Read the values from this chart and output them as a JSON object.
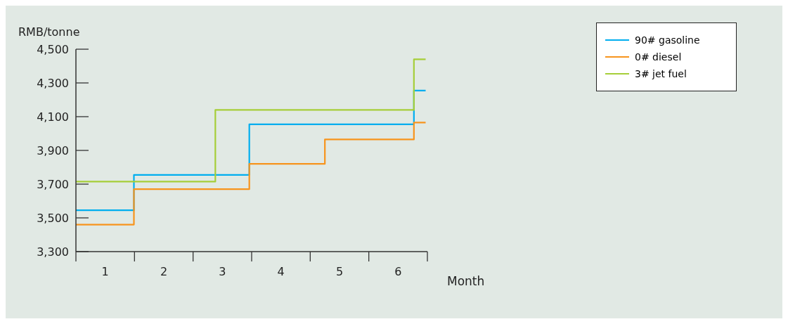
{
  "chart_data": {
    "type": "step",
    "ylabel": "RMB/tonne",
    "xlabel": "Month",
    "xlim": [
      0,
      6
    ],
    "xticks": [
      {
        "value": 0,
        "label": null
      },
      {
        "value": 0.5,
        "label": "1"
      },
      {
        "value": 1,
        "label": null
      },
      {
        "value": 1.5,
        "label": "2"
      },
      {
        "value": 2,
        "label": null
      },
      {
        "value": 2.5,
        "label": "3"
      },
      {
        "value": 3,
        "label": null
      },
      {
        "value": 3.5,
        "label": "4"
      },
      {
        "value": 4,
        "label": null
      },
      {
        "value": 4.5,
        "label": "5"
      },
      {
        "value": 5,
        "label": null
      },
      {
        "value": 5.5,
        "label": "6"
      },
      {
        "value": 6,
        "label": null
      }
    ],
    "ylim": [
      3300,
      4500
    ],
    "yticks": [
      {
        "value": 3300,
        "label": "3,300"
      },
      {
        "value": 3500,
        "label": "3,500"
      },
      {
        "value": 3700,
        "label": "3,700"
      },
      {
        "value": 3900,
        "label": "3,900"
      },
      {
        "value": 4100,
        "label": "4,100"
      },
      {
        "value": 4300,
        "label": "4,300"
      },
      {
        "value": 4500,
        "label": "4,500"
      }
    ],
    "series": [
      {
        "name": "90# gasoline",
        "color": "#00aeef",
        "x": [
          0,
          0.99,
          2.96,
          5.77,
          5.97
        ],
        "values": [
          3545,
          3755,
          4055,
          4255,
          4255
        ]
      },
      {
        "name": "0# diesel",
        "color": "#f7941d",
        "x": [
          0,
          0.99,
          2.96,
          4.25,
          5.77,
          5.97
        ],
        "values": [
          3460,
          3670,
          3820,
          3965,
          4065,
          4065
        ]
      },
      {
        "name": "3# jet fuel",
        "color": "#a6ce39",
        "x": [
          0,
          2.38,
          5.77,
          5.97
        ],
        "values": [
          3715,
          4140,
          4440,
          4440
        ]
      }
    ],
    "grid": false,
    "legend": "top right",
    "marker": "none",
    "line_style": "solid"
  }
}
